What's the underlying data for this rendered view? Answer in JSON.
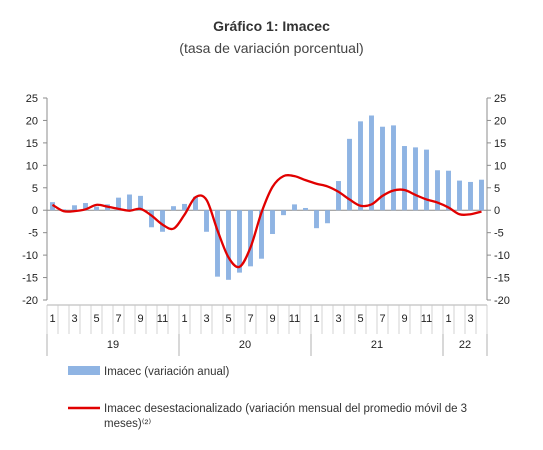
{
  "chart_data": {
    "type": "bar",
    "title": "Gráfico 1: Imacec",
    "subtitle": "(tasa de variación porcentual)",
    "ylim": [
      -20,
      25
    ],
    "y_ticks": [
      25,
      20,
      15,
      10,
      5,
      0,
      -5,
      -10,
      -15,
      -20
    ],
    "grid": false,
    "x_month_labels": [
      "1",
      "",
      "3",
      "",
      "5",
      "",
      "7",
      "",
      "9",
      "",
      "11",
      "",
      "1",
      "",
      "3",
      "",
      "5",
      "",
      "7",
      "",
      "9",
      "",
      "11",
      "",
      "1",
      "",
      "3",
      "",
      "5",
      "",
      "7",
      "",
      "9",
      "",
      "11",
      "",
      "1",
      "",
      "3",
      ""
    ],
    "years": [
      {
        "label": "19",
        "start": 0,
        "end": 12
      },
      {
        "label": "20",
        "start": 12,
        "end": 24
      },
      {
        "label": "21",
        "start": 24,
        "end": 36
      },
      {
        "label": "22",
        "start": 36,
        "end": 40
      }
    ],
    "series": [
      {
        "name": "Imacec (variación anual)",
        "type": "bar",
        "color": "#8fb4e3",
        "values": [
          1.8,
          0.2,
          1.1,
          1.6,
          0.8,
          1.3,
          2.8,
          3.5,
          3.2,
          -3.8,
          -4.8,
          0.9,
          1.4,
          3.0,
          -4.8,
          -14.8,
          -15.5,
          -13.9,
          -12.5,
          -10.8,
          -5.3,
          -1.1,
          1.3,
          0.5,
          -4.0,
          -2.9,
          6.5,
          15.9,
          19.8,
          21.1,
          18.6,
          18.9,
          14.3,
          14.0,
          13.5,
          8.9,
          8.8,
          6.6,
          6.3,
          6.8
        ]
      },
      {
        "name": "Imacec desestacionalizado (variación mensual del promedio móvil de 3 meses)⁽²⁾",
        "type": "line",
        "color": "#e10000",
        "values": [
          1.2,
          -0.2,
          -0.2,
          0.2,
          1.2,
          0.8,
          0.3,
          -0.1,
          0.3,
          -1.2,
          -3.2,
          -4.1,
          -1.0,
          2.9,
          2.3,
          -4.5,
          -10.5,
          -12.6,
          -8.3,
          -0.5,
          5.2,
          7.6,
          7.6,
          6.7,
          5.9,
          5.3,
          4.1,
          2.4,
          1.0,
          1.3,
          3.2,
          4.4,
          4.5,
          3.4,
          2.4,
          1.7,
          0.6,
          -0.9,
          -0.9,
          -0.3
        ]
      }
    ],
    "legend_placement": "bottom"
  }
}
